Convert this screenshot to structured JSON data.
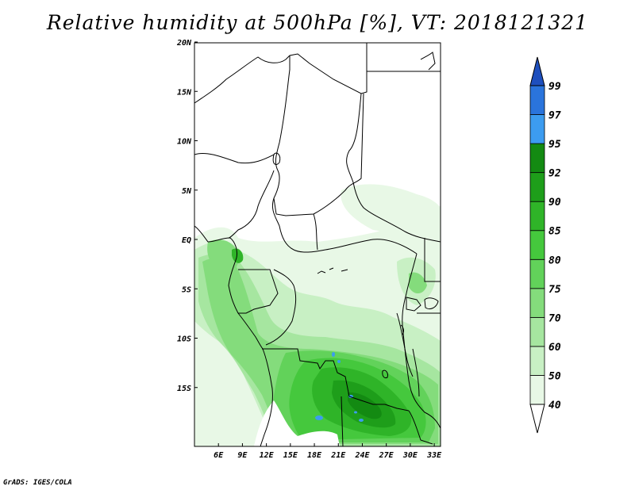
{
  "title": "Relative humidity at 500hPa [%], VT: 2018121321",
  "credit": "GrADS: IGES/COLA",
  "map": {
    "lon_range": [
      3,
      34
    ],
    "lat_range": [
      -16.5,
      25
    ],
    "x_ticks": [
      "6E",
      "9E",
      "12E",
      "15E",
      "18E",
      "21E",
      "24E",
      "27E",
      "30E",
      "33E"
    ],
    "y_ticks": [
      "20N",
      "15N",
      "10N",
      "5N",
      "EQ",
      "5S",
      "10S",
      "15S"
    ]
  },
  "colorbar": {
    "levels": [
      "40",
      "50",
      "60",
      "70",
      "75",
      "80",
      "85",
      "90",
      "92",
      "95",
      "97",
      "99"
    ],
    "colors": [
      "#e8f8e6",
      "#c8f0c4",
      "#a6e6a0",
      "#84dc7c",
      "#62d25a",
      "#45c83d",
      "#2fb428",
      "#1e9e1a",
      "#138a12",
      "#3c9cf0",
      "#2a74dc",
      "#1e4fbe"
    ],
    "below_color": "#ffffff",
    "above_color": "#1e4fbe"
  }
}
